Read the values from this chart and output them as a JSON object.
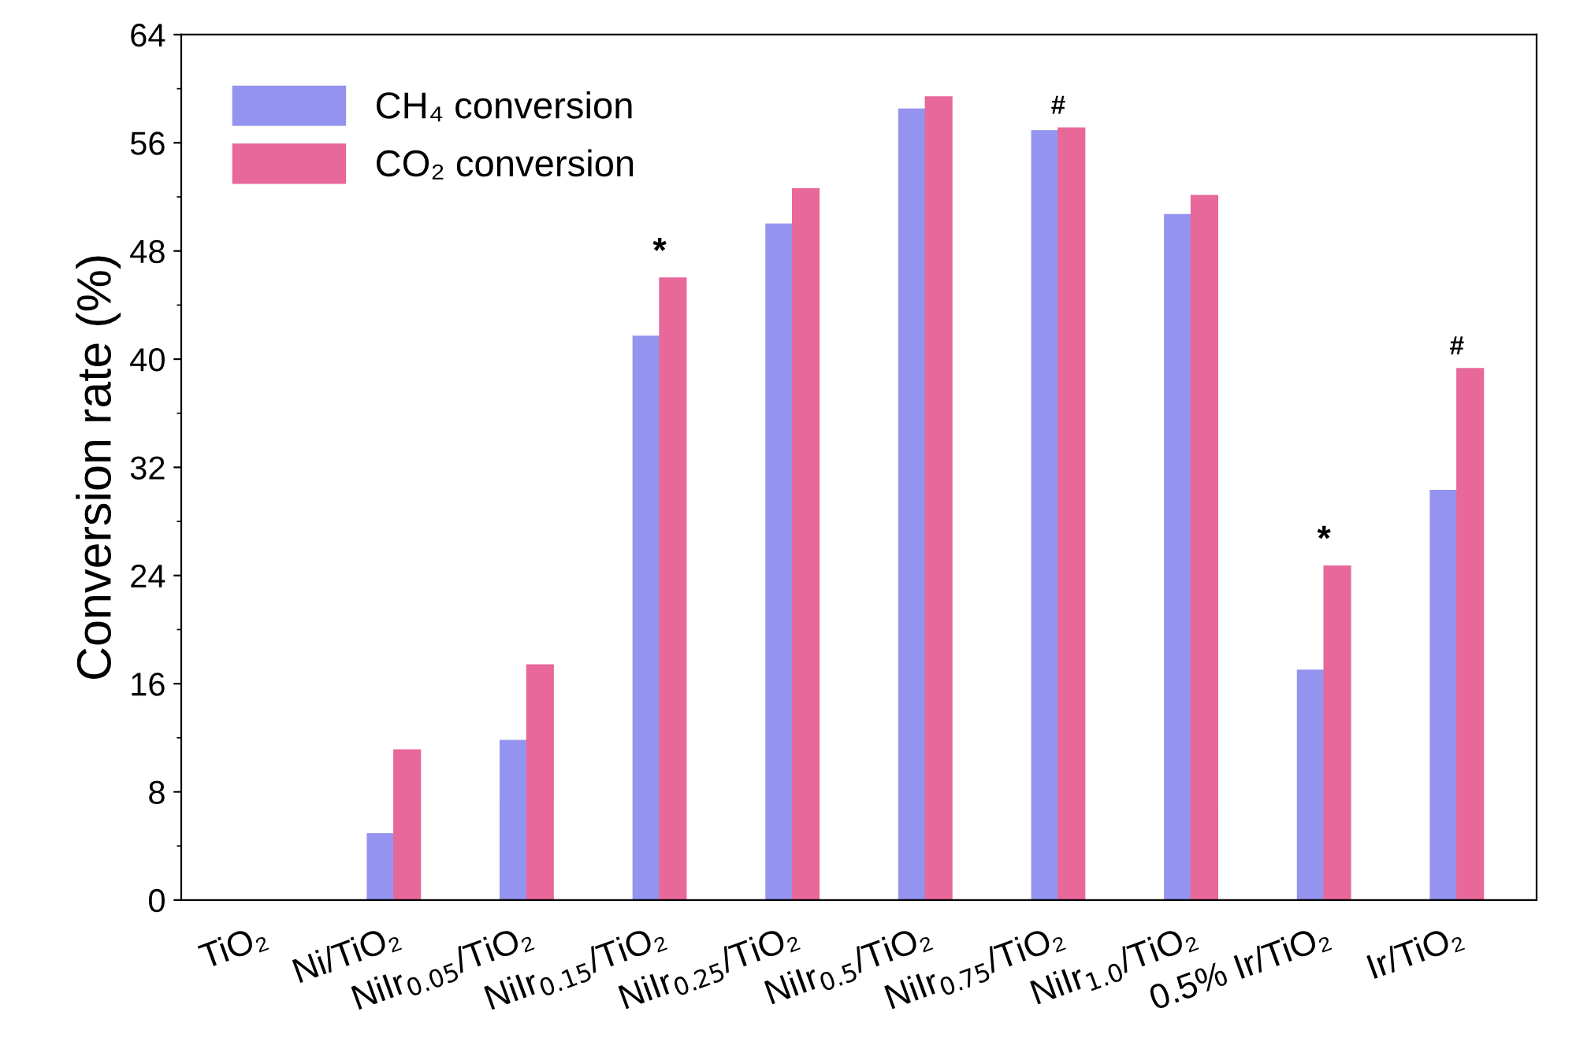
{
  "chart_data": {
    "type": "bar",
    "ylabel": "Conversion rate (%)",
    "categories": [
      "TiO₂",
      "Ni/TiO₂",
      "NiIr$_{0.05}$/TiO₂",
      "NiIr$_{0.15}$/TiO₂",
      "NiIr$_{0.25}$/TiO₂",
      "NiIr$_{0.5}$/TiO₂",
      "NiIr$_{0.75}$/TiO₂",
      "NiIr$_{1.0}$/TiO₂",
      "0.5% Ir/TiO₂",
      "Ir/TiO₂"
    ],
    "series": [
      {
        "name": "CH₄ conversion",
        "color": "#9494f0",
        "values": [
          0,
          4.9,
          11.8,
          41.7,
          50.0,
          58.5,
          56.9,
          50.7,
          17.0,
          30.3
        ]
      },
      {
        "name": "CO₂ conversion",
        "color": "#e8689a",
        "values": [
          0,
          11.1,
          17.4,
          46.0,
          52.6,
          59.4,
          57.1,
          52.1,
          24.7,
          39.3
        ]
      }
    ],
    "ylim": [
      0,
      64
    ],
    "yticks": [
      0,
      8,
      16,
      24,
      32,
      40,
      48,
      56,
      64
    ],
    "annotations": [
      {
        "text": "*",
        "x": "NiIr$_{0.15}$/TiO₂",
        "y": 46.0
      },
      {
        "text": "#",
        "x": "NiIr$_{0.75}$/TiO₂",
        "y": 57.1
      },
      {
        "text": "*",
        "x": "0.5% Ir/TiO₂",
        "y": 24.7
      },
      {
        "text": "#",
        "x": "Ir/TiO₂",
        "y": 39.3
      }
    ],
    "legend": "top left",
    "grid": false
  }
}
